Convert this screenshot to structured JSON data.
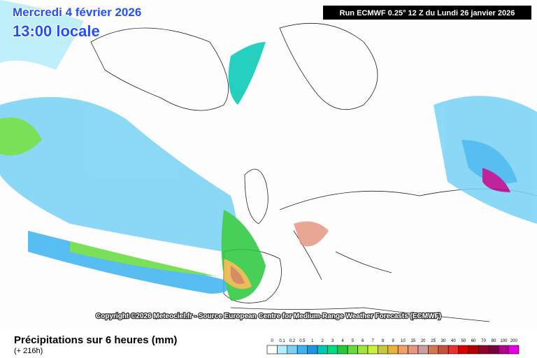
{
  "header": {
    "date": "Mercredi 4 février 2026",
    "time": "13:00 locale",
    "run": "Run ECMWF 0.25° 12 Z du Lundi 26 janvier 2026"
  },
  "copyright": "Copyright ©2026 Meteociel.fr - Source European Centre for Medium-Range Weather Forecasts (ECMWF)",
  "footer": {
    "title": "Précipitations sur 6 heures (mm)",
    "lead": "(+ 216h)"
  },
  "legend": [
    {
      "value": 0,
      "color": "#ffffff"
    },
    {
      "value": 0.1,
      "color": "#b4ecfa"
    },
    {
      "value": 0.2,
      "color": "#78d2f5"
    },
    {
      "value": 0.5,
      "color": "#3cb4f0"
    },
    {
      "value": 1,
      "color": "#1e96e6"
    },
    {
      "value": 2,
      "color": "#00c8b4"
    },
    {
      "value": 3,
      "color": "#00dc82"
    },
    {
      "value": 4,
      "color": "#28c83c"
    },
    {
      "value": 5,
      "color": "#64dc3c"
    },
    {
      "value": 6,
      "color": "#a0e63c"
    },
    {
      "value": 7,
      "color": "#c8f03c"
    },
    {
      "value": 8,
      "color": "#c8c83c"
    },
    {
      "value": 9,
      "color": "#e6b43c"
    },
    {
      "value": 10,
      "color": "#f0a064"
    },
    {
      "value": 15,
      "color": "#e69682"
    },
    {
      "value": 20,
      "color": "#c8a0a0"
    },
    {
      "value": 25,
      "color": "#d27850"
    },
    {
      "value": 30,
      "color": "#c8503c"
    },
    {
      "value": 40,
      "color": "#e63232"
    },
    {
      "value": 50,
      "color": "#dc0000"
    },
    {
      "value": 60,
      "color": "#b40000"
    },
    {
      "value": 70,
      "color": "#960028"
    },
    {
      "value": 80,
      "color": "#78003c"
    },
    {
      "value": 100,
      "color": "#b4008c"
    },
    {
      "value": 200,
      "color": "#e600e6"
    }
  ]
}
